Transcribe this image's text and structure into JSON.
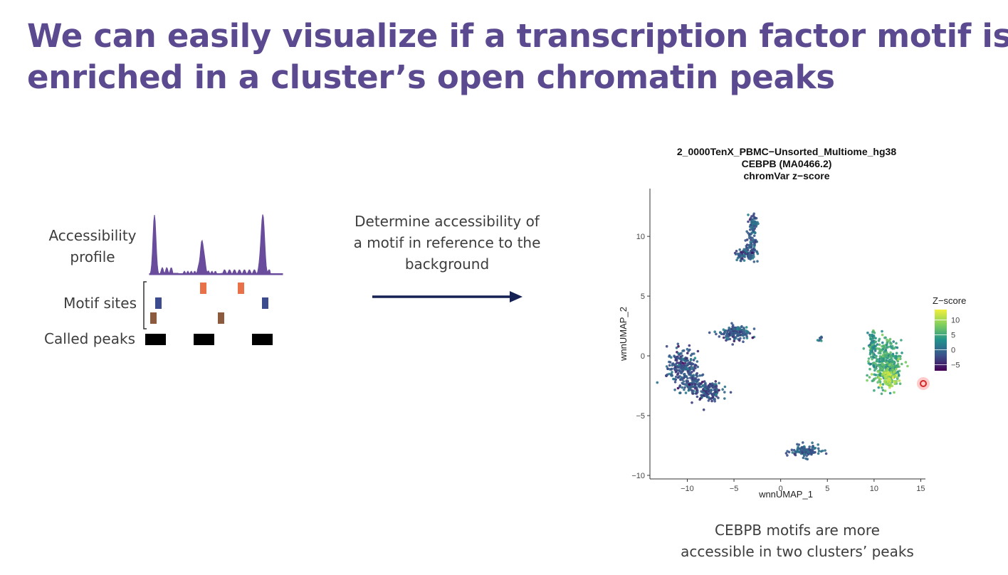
{
  "slide": {
    "title_line1": "We can easily visualize if a transcription factor motif is",
    "title_line2": "enriched in a cluster’s open chromatin peaks"
  },
  "left_diagram": {
    "label_accessibility_line1": "Accessibility",
    "label_accessibility_line2": "profile",
    "label_motif_sites": "Motif sites",
    "label_called_peaks": "Called peaks",
    "colors": {
      "profile": "#6a4c9c",
      "motif_orange": "#e8714a",
      "motif_blue": "#3c4a8e",
      "motif_brown": "#8c5a3c",
      "peaks": "#000000"
    }
  },
  "middle": {
    "line1": "Determine accessibility of",
    "line2": "a motif in reference to the",
    "line3": "background",
    "arrow_color": "#142152"
  },
  "plot": {
    "title_line1": "2_0000TenX_PBMC−Unsorted_Multiome_hg38",
    "title_line2": "CEBPB (MA0466.2)",
    "title_line3": "chromVar z−score",
    "legend_title": "Z−score",
    "legend_ticks": [
      "10",
      "5",
      "0",
      "−5"
    ],
    "legend_colors": [
      "#f2ef3c",
      "#7fcf5e",
      "#21918c",
      "#3b528b",
      "#440154"
    ]
  },
  "chart_data": {
    "type": "scatter",
    "title": "2_0000TenX_PBMC−Unsorted_Multiome_hg38 / CEBPB (MA0466.2) / chromVar z−score",
    "xlabel": "wnnUMAP_1",
    "ylabel": "wnnUMAP_2",
    "xlim": [
      -14,
      15.5
    ],
    "ylim": [
      -10.3,
      14
    ],
    "x_ticks": [
      "−10",
      "−5",
      "0",
      "5",
      "10",
      "15"
    ],
    "x_tick_values": [
      -10,
      -5,
      0,
      5,
      10,
      15
    ],
    "y_ticks": [
      "10",
      "5",
      "0",
      "−5",
      "−10"
    ],
    "y_tick_values": [
      10,
      5,
      0,
      -5,
      -10
    ],
    "grid": false,
    "legend": "right",
    "color_scale": {
      "name": "Z−score",
      "min": -7,
      "max": 14
    },
    "clusters": [
      {
        "cx": -10.5,
        "cy": -1.0,
        "rx": 1.6,
        "ry": 1.6,
        "n": 220,
        "z": -1.5
      },
      {
        "cx": -7.8,
        "cy": -2.9,
        "rx": 1.5,
        "ry": 0.8,
        "n": 140,
        "z": -1.5
      },
      {
        "cx": -9.3,
        "cy": -2.3,
        "rx": 1.2,
        "ry": 1.0,
        "n": 80,
        "z": -1.5
      },
      {
        "cx": -3.0,
        "cy": 11.0,
        "rx": 0.5,
        "ry": 1.0,
        "n": 70,
        "z": -1.0
      },
      {
        "cx": -3.1,
        "cy": 9.0,
        "rx": 0.6,
        "ry": 1.0,
        "n": 70,
        "z": -1.0
      },
      {
        "cx": -4.0,
        "cy": 8.5,
        "rx": 0.9,
        "ry": 0.5,
        "n": 60,
        "z": -1.0
      },
      {
        "cx": -4.8,
        "cy": 1.9,
        "rx": 1.5,
        "ry": 0.6,
        "n": 150,
        "z": -1.0
      },
      {
        "cx": 2.7,
        "cy": -8.0,
        "rx": 1.6,
        "ry": 0.5,
        "n": 120,
        "z": -1.0
      },
      {
        "cx": 4.2,
        "cy": 1.4,
        "rx": 0.2,
        "ry": 0.2,
        "n": 8,
        "z": 0.0
      },
      {
        "cx": 11.3,
        "cy": -0.6,
        "rx": 1.6,
        "ry": 1.9,
        "n": 380,
        "z": 5.5
      },
      {
        "cx": 9.8,
        "cy": 1.0,
        "rx": 0.4,
        "ry": 1.2,
        "n": 60,
        "z": 4.0
      },
      {
        "cx": 11.6,
        "cy": -1.9,
        "rx": 0.9,
        "ry": 0.6,
        "n": 80,
        "z": 10.5
      }
    ]
  },
  "caption": {
    "line1": "CEBPB motifs are more",
    "line2": "accessible in two clusters’ peaks"
  }
}
